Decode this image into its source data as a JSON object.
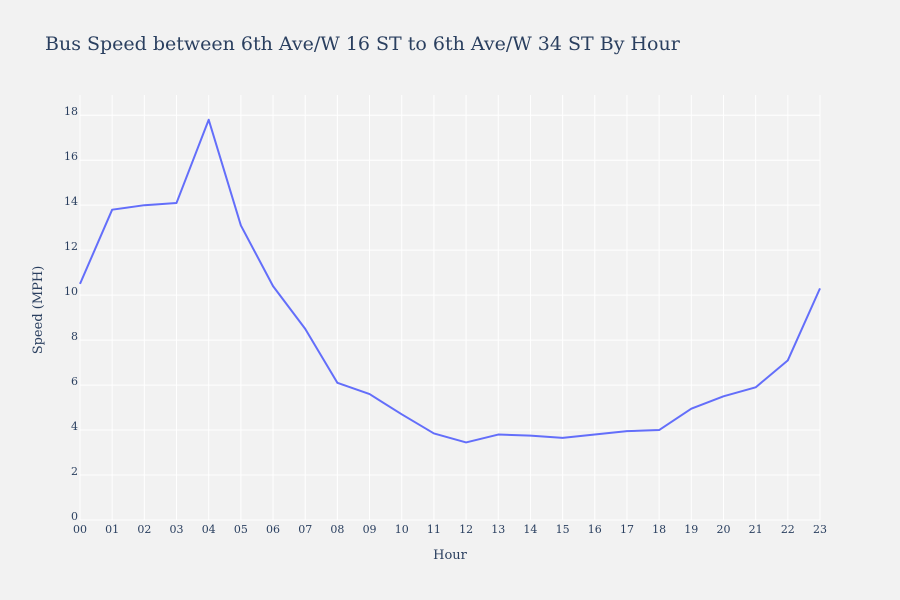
{
  "chart_data": {
    "type": "line",
    "title": "Bus Speed between 6th Ave/W 16 ST to 6th Ave/W 34 ST By Hour",
    "xlabel": "Hour",
    "ylabel": "Speed (MPH)",
    "categories": [
      "00",
      "01",
      "02",
      "03",
      "04",
      "05",
      "06",
      "07",
      "08",
      "09",
      "10",
      "11",
      "12",
      "13",
      "14",
      "15",
      "16",
      "17",
      "18",
      "19",
      "20",
      "21",
      "22",
      "23"
    ],
    "yticks": [
      0,
      2,
      4,
      6,
      8,
      10,
      12,
      14,
      16,
      18
    ],
    "ylim": [
      0,
      18.9
    ],
    "series": [
      {
        "values": [
          10.5,
          13.8,
          14.0,
          14.1,
          17.8,
          13.1,
          10.4,
          8.5,
          6.1,
          5.6,
          4.7,
          3.85,
          3.45,
          3.8,
          3.75,
          3.65,
          3.8,
          3.95,
          4.0,
          4.95,
          5.5,
          5.9,
          7.1,
          10.3
        ]
      }
    ],
    "grid": true,
    "colors": {
      "background": "#f2f2f2",
      "line": "#636efa",
      "text": "#2a3f5f",
      "grid": "#ffffff"
    }
  }
}
